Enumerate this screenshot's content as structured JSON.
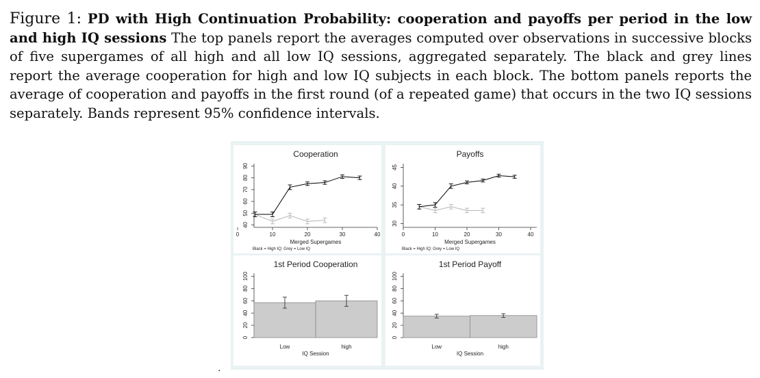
{
  "caption": {
    "label": "Figure 1:",
    "bold_title": "PD with High Continuation Probability: cooperation and payoffs per period in the low and high IQ sessions",
    "body": "The top panels report the averages computed over observations in successive blocks of five supergames of all high and all low IQ sessions, aggregated separately. The black and grey lines report the average cooperation for high and low IQ subjects in each block. The bottom panels reports the average of cooperation and payoffs in the first round (of a repeated game) that occurs in the two IQ sessions separately. Bands represent 95% confidence intervals."
  },
  "stray_mark": ".",
  "colors": {
    "panel_bg": "#ffffff",
    "frame_bg": "#eaf2f3",
    "high_line": "#000000",
    "low_line": "#b4b4b4",
    "bar_fill": "#cccccc"
  },
  "chart_data": [
    {
      "type": "line",
      "title": "Cooperation",
      "xlabel": "Merged Supergames",
      "note": "Black = High IQ; Grey = Low IQ",
      "x_ticks": [
        "0",
        "10",
        "20",
        "30",
        "40"
      ],
      "y_ticks": [
        "40",
        "50",
        "60",
        "70",
        "80",
        "90"
      ],
      "xlim": [
        0,
        40
      ],
      "ylim": [
        38,
        92
      ],
      "series": [
        {
          "x": [
            5,
            10,
            15,
            20,
            25,
            30,
            35
          ],
          "y": [
            49,
            49,
            72,
            75,
            76,
            81,
            80
          ],
          "err": [
            2,
            2,
            2,
            1.5,
            1.5,
            1.5,
            1.5
          ]
        },
        {
          "x": [
            5,
            10,
            15,
            20,
            25
          ],
          "y": [
            49,
            43,
            48,
            43,
            44
          ],
          "err": [
            2,
            2,
            2,
            2,
            2
          ]
        }
      ]
    },
    {
      "type": "line",
      "title": "Payoffs",
      "xlabel": "Merged Supergames",
      "note": "Black = High IQ; Grey = Low IQ",
      "x_ticks": [
        "0",
        "10",
        "20",
        "30",
        "40"
      ],
      "y_ticks": [
        "30",
        "35",
        "40",
        "45"
      ],
      "xlim": [
        0,
        40
      ],
      "ylim": [
        29,
        46
      ],
      "series": [
        {
          "x": [
            5,
            10,
            15,
            20,
            25,
            30,
            35
          ],
          "y": [
            34.5,
            35,
            40,
            41,
            41.5,
            42.8,
            42.5
          ],
          "err": [
            0.6,
            0.6,
            0.6,
            0.4,
            0.4,
            0.4,
            0.4
          ]
        },
        {
          "x": [
            5,
            10,
            15,
            20,
            25
          ],
          "y": [
            34.5,
            33.5,
            34.5,
            33.5,
            33.5
          ],
          "err": [
            0.6,
            0.6,
            0.6,
            0.6,
            0.6
          ]
        }
      ]
    },
    {
      "type": "bar",
      "title": "1st Period Cooperation",
      "xlabel": "IQ Session",
      "categories": [
        "Low",
        "high"
      ],
      "y_ticks": [
        "0",
        "20",
        "40",
        "60",
        "80",
        "100"
      ],
      "ylim": [
        0,
        105
      ],
      "values": [
        57,
        60
      ],
      "err": [
        9,
        9
      ]
    },
    {
      "type": "bar",
      "title": "1st Period Payoff",
      "xlabel": "IQ Session",
      "categories": [
        "Low",
        "high"
      ],
      "y_ticks": [
        "0",
        "20",
        "40",
        "60",
        "80",
        "100"
      ],
      "ylim": [
        0,
        105
      ],
      "values": [
        35,
        36
      ],
      "err": [
        3,
        3
      ]
    }
  ]
}
